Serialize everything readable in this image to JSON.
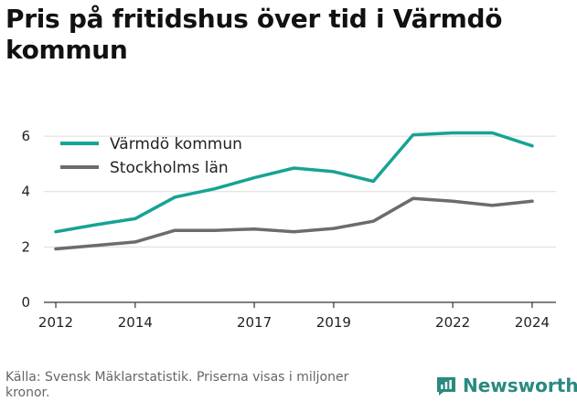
{
  "title": "Pris på fritidshus över tid i Värmdö kommun",
  "source": "Källa: Svensk Mäklarstatistik. Priserna visas i miljoner kronor.",
  "brand": {
    "name": "Newsworthy",
    "icon": "newsworthy-logo-icon"
  },
  "colors": {
    "varmdo": "#16a394",
    "stockholm": "#6b6b70",
    "grid": "#dcdcdc",
    "axis": "#333333"
  },
  "chart_data": {
    "type": "line",
    "title": "Pris på fritidshus över tid i Värmdö kommun",
    "xlabel": "",
    "ylabel": "",
    "x": [
      2012,
      2013,
      2014,
      2015,
      2016,
      2017,
      2018,
      2019,
      2020,
      2021,
      2022,
      2023,
      2024
    ],
    "xticks": [
      2012,
      2014,
      2017,
      2019,
      2022,
      2024
    ],
    "yticks": [
      0,
      2,
      4,
      6
    ],
    "xlim": [
      2011.7,
      2024.6
    ],
    "ylim": [
      0,
      6.3
    ],
    "grid": true,
    "legend": "top-left",
    "series": [
      {
        "name": "Värmdö kommun",
        "values": [
          2.55,
          2.8,
          3.02,
          3.8,
          4.1,
          4.5,
          4.85,
          4.72,
          4.37,
          6.05,
          6.12,
          6.12,
          5.65
        ]
      },
      {
        "name": "Stockholms län",
        "values": [
          1.93,
          2.05,
          2.18,
          2.6,
          2.6,
          2.65,
          2.55,
          2.67,
          2.93,
          3.75,
          3.65,
          3.5,
          3.65
        ]
      }
    ]
  }
}
